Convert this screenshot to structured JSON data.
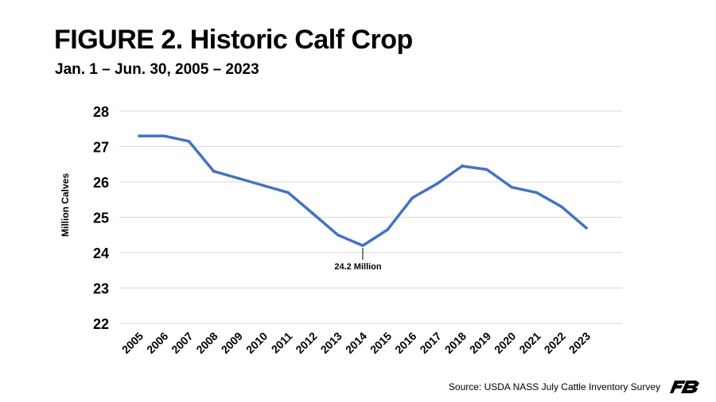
{
  "header": {
    "title": "FIGURE 2. Historic Calf Crop",
    "subtitle": "Jan. 1 – Jun. 30, 2005 – 2023"
  },
  "footer": {
    "source": "Source: USDA NASS July Cattle Inventory Survey",
    "logo_icon": "farm-bureau-logo-icon"
  },
  "colors": {
    "line": "#4472C4",
    "grid": "#D9D9D9",
    "text": "#000000"
  },
  "chart_data": {
    "type": "line",
    "title": "FIGURE 2. Historic Calf Crop",
    "subtitle": "Jan. 1 – Jun. 30, 2005 – 2023",
    "xlabel": "",
    "ylabel": "Million Calves",
    "ylim": [
      22,
      28
    ],
    "yticks": [
      "22",
      "23",
      "24",
      "25",
      "26",
      "27",
      "28"
    ],
    "grid": true,
    "categories": [
      "2005",
      "2006",
      "2007",
      "2008",
      "2009",
      "2010",
      "2011",
      "2012",
      "2013",
      "2014",
      "2015",
      "2016",
      "2017",
      "2018",
      "2019",
      "2020",
      "2021",
      "2022",
      "2023"
    ],
    "series": [
      {
        "values": [
          27.3,
          27.3,
          27.15,
          26.3,
          26.1,
          25.9,
          25.7,
          25.1,
          24.5,
          24.2,
          24.65,
          25.55,
          25.95,
          26.45,
          26.35,
          25.85,
          25.7,
          25.3,
          24.7
        ]
      }
    ],
    "annotations": [
      {
        "category": "2014",
        "text": "24.2 Million"
      }
    ]
  }
}
